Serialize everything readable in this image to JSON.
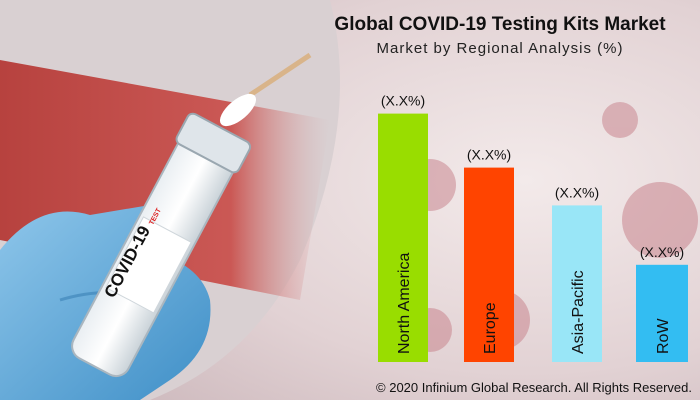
{
  "chart_data": {
    "type": "bar",
    "title": "Global COVID-19 Testing Kits Market",
    "subtitle": "Market by Regional Analysis (%)",
    "categories": [
      "North America",
      "Europe",
      "Asia-Pacific",
      "RoW"
    ],
    "values": [
      46,
      36,
      29,
      18
    ],
    "data_labels": [
      "(X.X%)",
      "(X.X%)",
      "(X.X%)",
      "(X.X%)"
    ],
    "colors": [
      "#99dd00",
      "#ff4400",
      "#99e6f7",
      "#33bdf2"
    ],
    "ylim": [
      0,
      50
    ],
    "grid": false,
    "legend": "none"
  },
  "image_text": {
    "tube_label": "COVID-19",
    "tube_sublabel": "TEST"
  },
  "footer": {
    "copyright": "© 2020 Infinium Global Research. All Rights Reserved."
  }
}
